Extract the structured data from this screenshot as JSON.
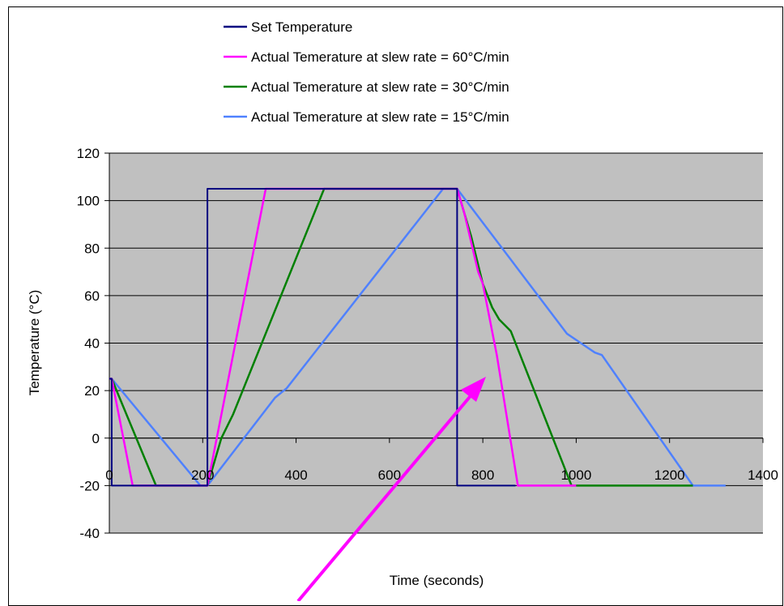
{
  "chart_data": {
    "type": "line",
    "title": "",
    "xlabel": "Time (seconds)",
    "ylabel": "Temperature (°C)",
    "xlim": [
      0,
      1400
    ],
    "ylim": [
      -40,
      120
    ],
    "x_ticks": [
      0,
      200,
      400,
      600,
      800,
      1000,
      1200,
      1400
    ],
    "x_tick_labels": [
      "0",
      "200",
      "400",
      "600",
      "800",
      "1000",
      "1200",
      "1400"
    ],
    "y_ticks": [
      -40,
      -20,
      0,
      20,
      40,
      60,
      80,
      100,
      120
    ],
    "y_tick_labels": [
      "-40",
      "-20",
      "0",
      "20",
      "40",
      "60",
      "80",
      "100",
      "120"
    ],
    "grid": "horizontal",
    "legend_position": "top",
    "plot_background": "#c0c0c0",
    "series": [
      {
        "name": "Set Temperature",
        "color": "#000080",
        "x": [
          0,
          5,
          5,
          210,
          210,
          745,
          745,
          870
        ],
        "y": [
          25,
          25,
          -20,
          -20,
          105,
          105,
          -20,
          -20
        ]
      },
      {
        "name": "Actual Temerature at slew rate = 60°C/min",
        "color": "#ff00ff",
        "x": [
          0,
          5,
          50,
          210,
          335,
          745,
          760,
          790,
          800,
          830,
          875,
          1000
        ],
        "y": [
          25,
          25,
          -20,
          -20,
          105,
          105,
          95,
          70,
          65,
          35,
          -20,
          -20
        ]
      },
      {
        "name": "Actual Temerature at slew rate = 30°C/min",
        "color": "#008000",
        "x": [
          0,
          5,
          100,
          210,
          240,
          265,
          460,
          745,
          775,
          800,
          820,
          835,
          860,
          990,
          1000,
          1250
        ],
        "y": [
          25,
          25,
          -20,
          -20,
          0,
          10,
          105,
          105,
          85,
          65,
          55,
          50,
          45,
          -20,
          -20,
          -20
        ]
      },
      {
        "name": "Actual Temerature at slew rate = 15°C/min",
        "color": "#4f81ff",
        "x": [
          0,
          5,
          195,
          210,
          355,
          380,
          715,
          745,
          980,
          1010,
          1040,
          1055,
          1250,
          1320
        ],
        "y": [
          25,
          25,
          -20,
          -20,
          17,
          21,
          105,
          105,
          44,
          40,
          36,
          35,
          -20,
          -20
        ]
      }
    ]
  }
}
